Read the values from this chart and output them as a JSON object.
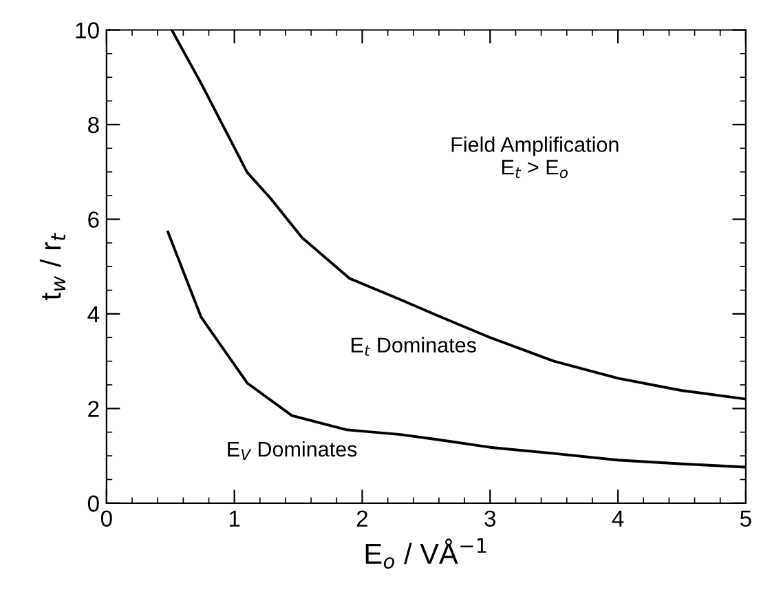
{
  "chart_data": {
    "type": "line",
    "xlabel": "E$_{o}$ / VÅ$^{−1}$",
    "ylabel": "t$_{w}$ / r$_{t}$",
    "xlim": [
      0,
      5
    ],
    "ylim": [
      0,
      10
    ],
    "xticks": [
      0,
      1,
      2,
      3,
      4,
      5
    ],
    "yticks": [
      0,
      2,
      4,
      6,
      8,
      10
    ],
    "grid": false,
    "marker": "none",
    "line_style": "solid",
    "series": [
      {
        "color": "#000000",
        "x": [
          0.51,
          0.74,
          1.1,
          1.28,
          1.53,
          1.9,
          2.3,
          2.6,
          3.0,
          3.5,
          4.0,
          4.5,
          5.0
        ],
        "values": [
          10,
          8.87,
          6.99,
          6.45,
          5.61,
          4.75,
          4.3,
          3.95,
          3.5,
          3.0,
          2.64,
          2.38,
          2.2
        ]
      },
      {
        "color": "#000000",
        "x": [
          0.48,
          0.74,
          1.1,
          1.45,
          1.88,
          2.3,
          2.6,
          3.0,
          3.5,
          4.0,
          4.5,
          5.0
        ],
        "values": [
          5.73,
          3.93,
          2.54,
          1.85,
          1.55,
          1.45,
          1.34,
          1.18,
          1.05,
          0.91,
          0.83,
          0.76
        ]
      }
    ],
    "annotations": [
      "Field Amplification\nE$_{t}$ > E$_{o}$",
      "E$_{t}$ Dominates",
      "E$_{V}$ Dominates"
    ]
  }
}
